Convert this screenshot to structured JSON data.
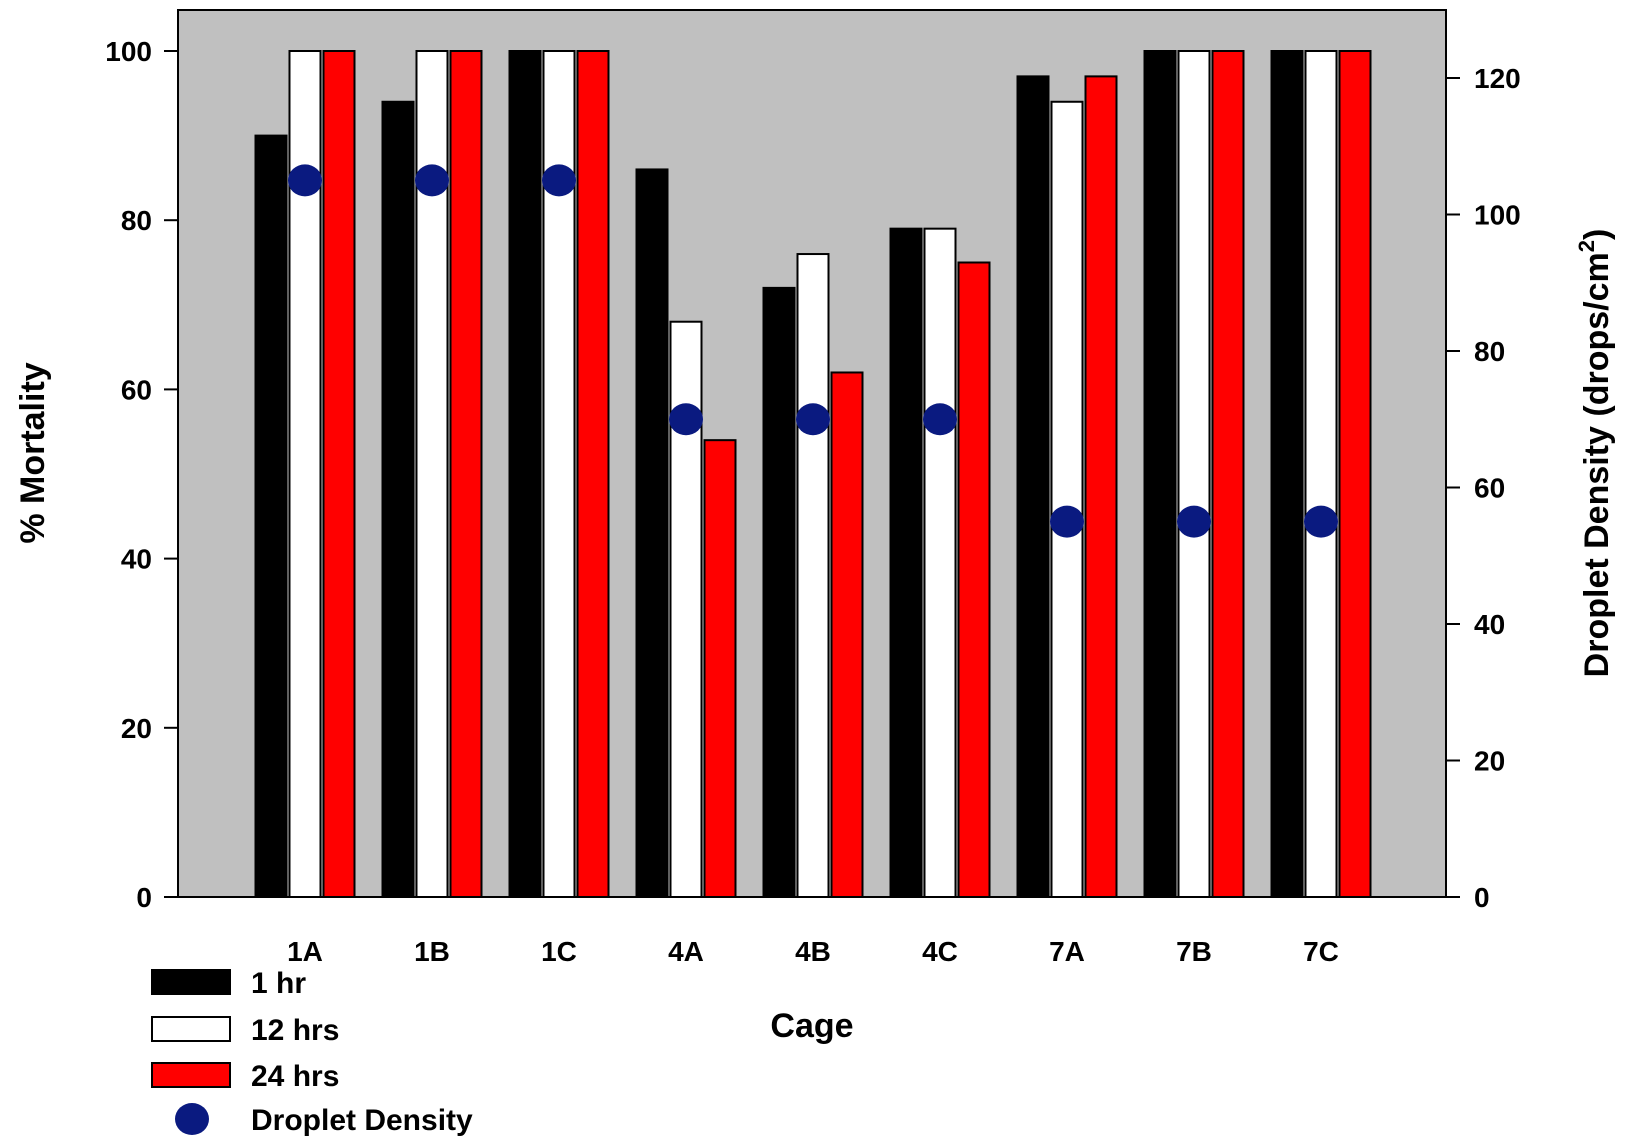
{
  "chart_data": {
    "type": "bar",
    "xlabel": "Cage",
    "ylabel": "% Mortality",
    "y2label": "Droplet Density (drops/cm²)",
    "y2label_main": "Droplet Density (drops/cm",
    "y2label_sup": "2",
    "y2label_end": ")",
    "categories": [
      "1A",
      "1B",
      "1C",
      "4A",
      "4B",
      "4C",
      "7A",
      "7B",
      "7C"
    ],
    "ylim": [
      0,
      100
    ],
    "yticks": [
      0,
      20,
      40,
      60,
      80,
      100
    ],
    "y2lim": [
      0,
      120
    ],
    "y2ticks": [
      0,
      20,
      40,
      60,
      80,
      100,
      120
    ],
    "series": [
      {
        "name": "1 hr",
        "axis": "left",
        "kind": "bar",
        "color": "#000000",
        "values": [
          90,
          94,
          100,
          86,
          72,
          79,
          97,
          100,
          100
        ]
      },
      {
        "name": "12 hrs",
        "axis": "left",
        "kind": "bar",
        "color": "#ffffff",
        "values": [
          100,
          100,
          100,
          68,
          76,
          79,
          94,
          100,
          100
        ]
      },
      {
        "name": "24 hrs",
        "axis": "left",
        "kind": "bar",
        "color": "#ff0000",
        "values": [
          100,
          100,
          100,
          54,
          62,
          75,
          97,
          100,
          100
        ]
      },
      {
        "name": "Droplet Density",
        "axis": "right",
        "kind": "scatter",
        "color": "#0a1a80",
        "values": [
          105,
          105,
          105,
          70,
          70,
          70,
          55,
          55,
          55
        ]
      }
    ],
    "plot_background": "#c0c0c0",
    "grid": false,
    "legend_position": "bottom-left"
  }
}
